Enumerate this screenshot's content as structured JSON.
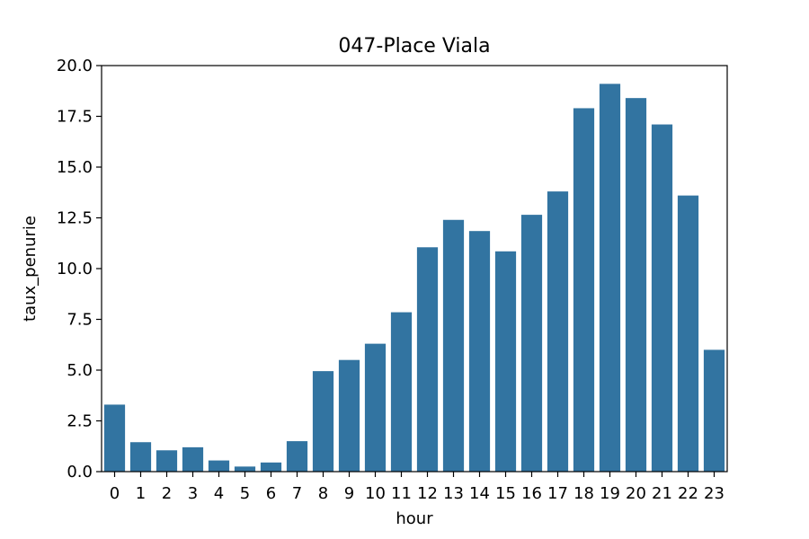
{
  "chart_data": {
    "type": "bar",
    "title": "047-Place Viala",
    "xlabel": "hour",
    "ylabel": "taux_penurie",
    "ylim": [
      0,
      20
    ],
    "yticks": [
      0.0,
      2.5,
      5.0,
      7.5,
      10.0,
      12.5,
      15.0,
      17.5,
      20.0
    ],
    "ytick_labels": [
      "0.0",
      "2.5",
      "5.0",
      "7.5",
      "10.0",
      "12.5",
      "15.0",
      "17.5",
      "20.0"
    ],
    "categories": [
      "0",
      "1",
      "2",
      "3",
      "4",
      "5",
      "6",
      "7",
      "8",
      "9",
      "10",
      "11",
      "12",
      "13",
      "14",
      "15",
      "16",
      "17",
      "18",
      "19",
      "20",
      "21",
      "22",
      "23"
    ],
    "values": [
      3.3,
      1.45,
      1.05,
      1.2,
      0.55,
      0.25,
      0.45,
      1.5,
      4.95,
      5.5,
      6.3,
      7.85,
      11.05,
      12.4,
      11.85,
      10.85,
      12.65,
      13.8,
      17.9,
      19.1,
      18.4,
      17.1,
      13.6,
      6.0
    ],
    "grid": false,
    "bar_color": "#3274a1"
  }
}
